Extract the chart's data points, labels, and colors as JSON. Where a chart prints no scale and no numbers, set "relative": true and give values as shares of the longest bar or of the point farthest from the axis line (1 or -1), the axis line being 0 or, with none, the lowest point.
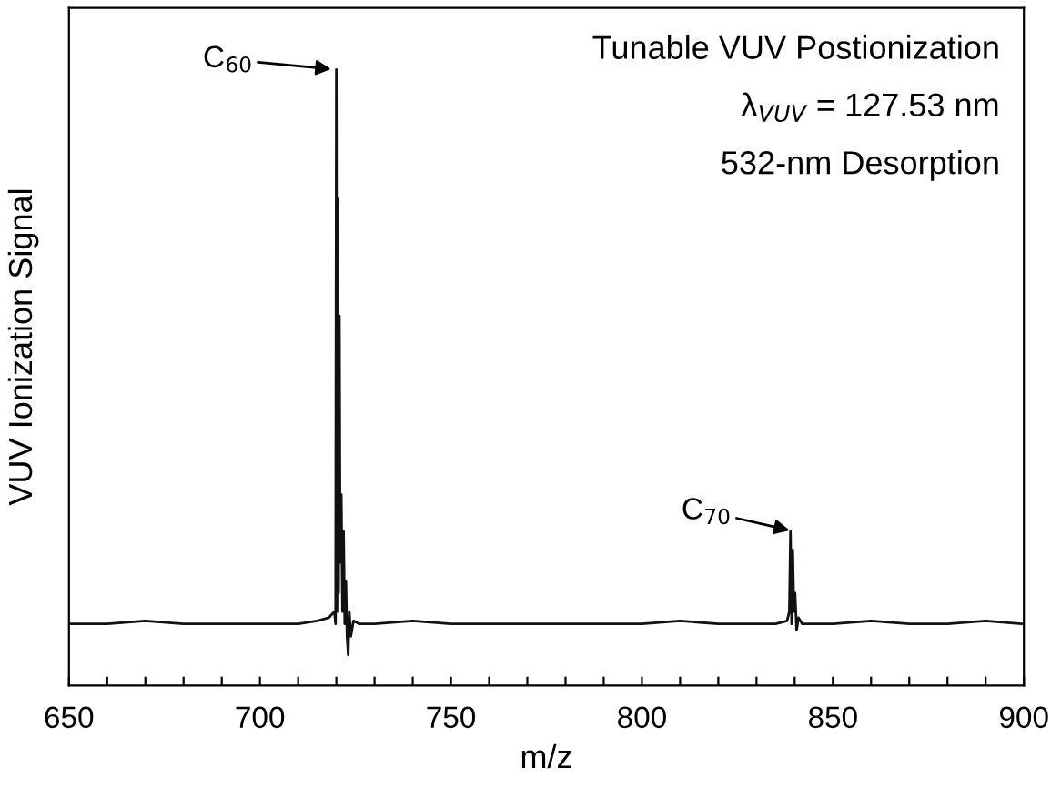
{
  "chart_data": {
    "type": "line",
    "relative": true,
    "xlabel": "m/z",
    "ylabel": "VUV Ionization Signal",
    "tick_labels": "x",
    "legend": false,
    "grid": false,
    "marker": "none",
    "line_style": "solid",
    "xlim": [
      650,
      900
    ],
    "xticks": [
      650,
      {
        "value": 660,
        "label": null
      },
      {
        "value": 670,
        "label": null
      },
      {
        "value": 680,
        "label": null
      },
      {
        "value": 690,
        "label": null
      },
      700,
      {
        "value": 710,
        "label": null
      },
      {
        "value": 720,
        "label": null
      },
      {
        "value": 730,
        "label": null
      },
      {
        "value": 740,
        "label": null
      },
      750,
      {
        "value": 760,
        "label": null
      },
      {
        "value": 770,
        "label": null
      },
      {
        "value": 780,
        "label": null
      },
      {
        "value": 790,
        "label": null
      },
      800,
      {
        "value": 810,
        "label": null
      },
      {
        "value": 820,
        "label": null
      },
      {
        "value": 830,
        "label": null
      },
      {
        "value": 840,
        "label": null
      },
      850,
      {
        "value": 860,
        "label": null
      },
      {
        "value": 870,
        "label": null
      },
      {
        "value": 880,
        "label": null
      },
      {
        "value": 890,
        "label": null
      },
      900
    ],
    "series": [
      {
        "color": "#111111",
        "x": [
          650,
          660,
          670,
          680,
          690,
          700,
          710,
          715,
          718,
          719.5,
          719.8,
          720,
          720.2,
          720.4,
          720.6,
          720.8,
          721,
          721.3,
          721.6,
          721.9,
          722.2,
          722.5,
          722.8,
          723.1,
          723.4,
          723.8,
          724.5,
          726,
          730,
          740,
          750,
          760,
          770,
          780,
          790,
          800,
          810,
          820,
          830,
          835,
          838,
          838.6,
          838.9,
          839.2,
          839.5,
          839.8,
          840.1,
          840.5,
          841,
          842,
          845,
          850,
          860,
          870,
          880,
          890,
          900
        ],
        "values": [
          0.1,
          0.1,
          0.105,
          0.1,
          0.1,
          0.1,
          0.1,
          0.105,
          0.11,
          0.12,
          0.1,
          1,
          0.12,
          0.79,
          0.15,
          0.6,
          0.2,
          0.31,
          0.12,
          0.25,
          0.1,
          0.17,
          0.08,
          0.05,
          0.12,
          0.08,
          0.105,
          0.1,
          0.1,
          0.105,
          0.1,
          0.1,
          0.1,
          0.1,
          0.1,
          0.1,
          0.105,
          0.1,
          0.1,
          0.1,
          0.105,
          0.12,
          0.25,
          0.1,
          0.22,
          0.12,
          0.15,
          0.09,
          0.11,
          0.1,
          0.1,
          0.1,
          0.105,
          0.1,
          0.1,
          0.105,
          0.1
        ]
      }
    ],
    "annotations": [
      {
        "text": "C$_{60}$",
        "x": 720,
        "y": 1
      },
      {
        "text": "C$_{70}$",
        "x": 840,
        "y": 0.25
      },
      "Tunable VUV Postionization",
      "λ$_{VUV}$ = 127.53 nm",
      "532-nm Desorption"
    ]
  }
}
